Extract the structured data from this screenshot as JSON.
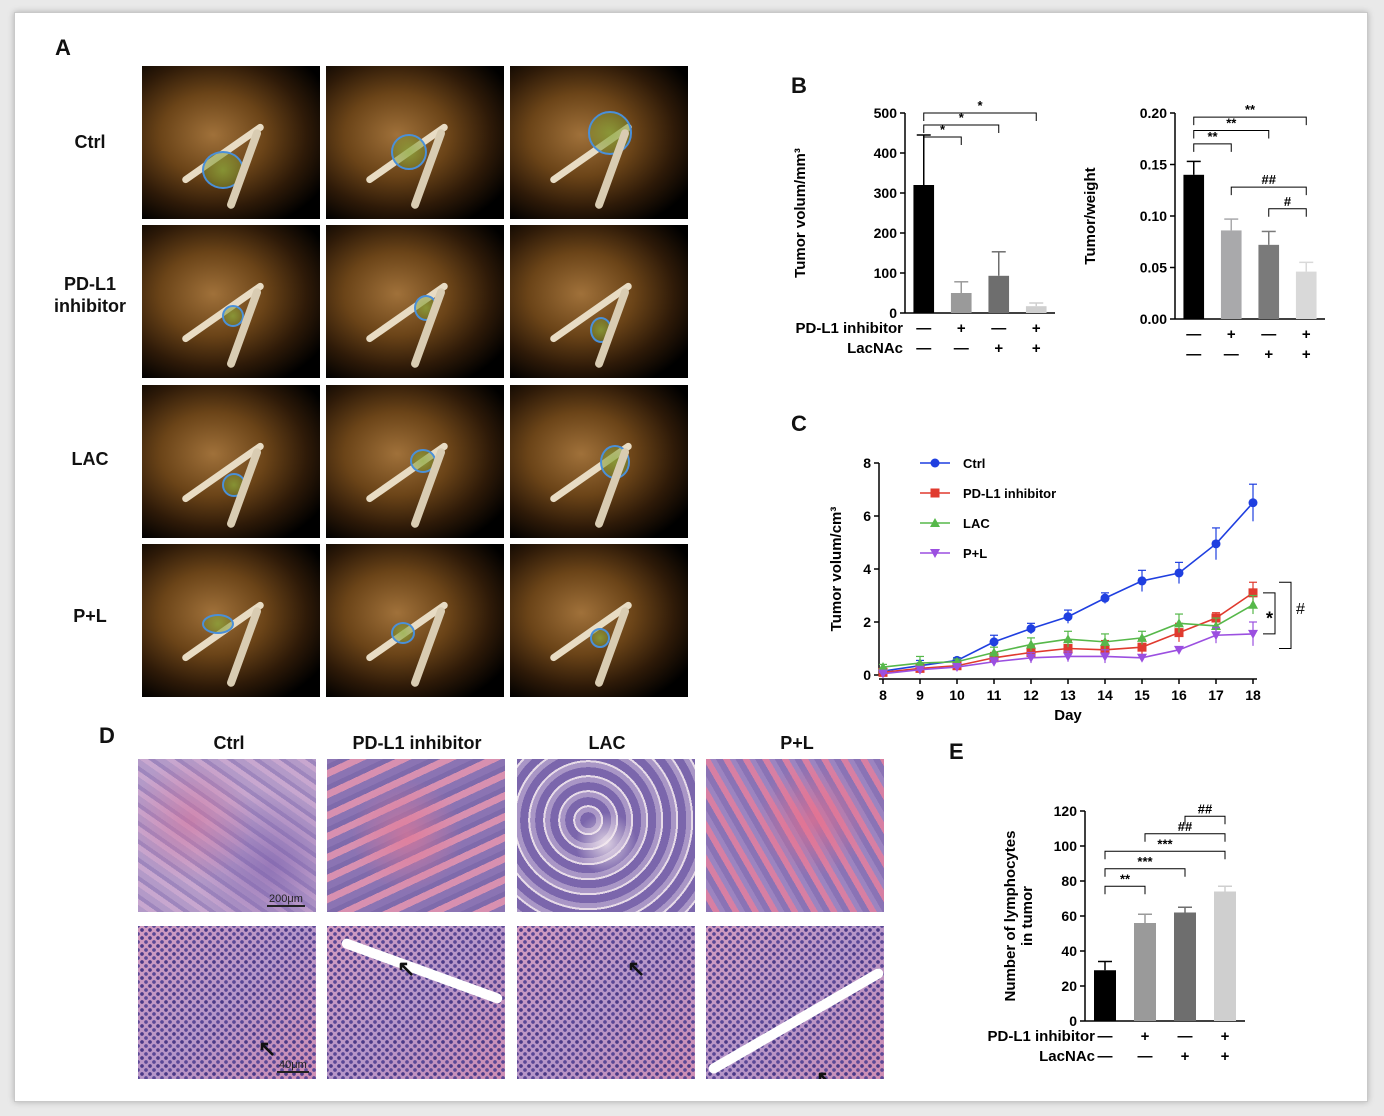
{
  "panels": {
    "A": "A",
    "B": "B",
    "C": "C",
    "D": "D",
    "E": "E"
  },
  "panel_a": {
    "row_labels": [
      "Ctrl",
      "PD-L1\ninhibitor",
      "LAC",
      "P+L"
    ]
  },
  "panel_d": {
    "col_labels": [
      "Ctrl",
      "PD-L1 inhibitor",
      "LAC",
      "P+L"
    ],
    "scale_bars": [
      "200μm",
      "40μm"
    ]
  },
  "treatment_table": {
    "rows": [
      {
        "label": "PD-L1 inhibitor",
        "signs": [
          "—",
          "+",
          "—",
          "+"
        ]
      },
      {
        "label": "LacNAc",
        "signs": [
          "—",
          "—",
          "+",
          "+"
        ]
      }
    ],
    "table_e_rows": [
      {
        "label": "PD-L1 inhibitor",
        "signs": [
          "—",
          "+",
          "—",
          "+"
        ]
      },
      {
        "label": "LacNAc",
        "signs": [
          "—",
          "—",
          "+",
          "+"
        ]
      }
    ]
  },
  "chart_data": [
    {
      "id": "B-left",
      "type": "bar",
      "ylabel": "Tumor volum/mm³",
      "ylim": [
        0,
        500
      ],
      "yticks": [
        "0",
        "100",
        "200",
        "300",
        "400",
        "500"
      ],
      "values": [
        320,
        50,
        93,
        17
      ],
      "errors": [
        125,
        28,
        60,
        8
      ],
      "colors": [
        "#000000",
        "#9a9a9a",
        "#6e6e6e",
        "#cfcfcf"
      ],
      "brackets": [
        {
          "from": 0,
          "to": 1,
          "level": 440,
          "text": "*"
        },
        {
          "from": 0,
          "to": 2,
          "level": 470,
          "text": "*"
        },
        {
          "from": 0,
          "to": 3,
          "level": 500,
          "text": "*"
        }
      ]
    },
    {
      "id": "B-right",
      "type": "bar",
      "ylabel": "Tumor/weight",
      "ylim": [
        0,
        0.2
      ],
      "yticks": [
        "0.00",
        "0.05",
        "0.10",
        "0.15",
        "0.20"
      ],
      "values": [
        0.14,
        0.086,
        0.072,
        0.046
      ],
      "errors": [
        0.013,
        0.011,
        0.013,
        0.009
      ],
      "colors": [
        "#000000",
        "#a9a9ab",
        "#7a7a7a",
        "#d9d9d9"
      ],
      "brackets": [
        {
          "from": 0,
          "to": 1,
          "level": 0.17,
          "text": "**"
        },
        {
          "from": 0,
          "to": 2,
          "level": 0.183,
          "text": "**"
        },
        {
          "from": 0,
          "to": 3,
          "level": 0.196,
          "text": "**"
        },
        {
          "from": 1,
          "to": 3,
          "level": 0.128,
          "text": "##"
        },
        {
          "from": 2,
          "to": 3,
          "level": 0.107,
          "text": "#"
        }
      ]
    },
    {
      "id": "C",
      "type": "line",
      "xlabel": "Day",
      "ylabel": "Tumor volum/cm³",
      "x": [
        8,
        9,
        10,
        11,
        12,
        13,
        14,
        15,
        16,
        17,
        18
      ],
      "ylim": [
        0,
        8
      ],
      "yticks": [
        "0",
        "2",
        "4",
        "6",
        "8"
      ],
      "series": [
        {
          "name": "Ctrl",
          "color": "#1f3fe0",
          "marker": "circle",
          "values": [
            0.15,
            0.35,
            0.55,
            1.25,
            1.75,
            2.2,
            2.9,
            3.55,
            3.85,
            4.95,
            6.5
          ],
          "errors": [
            0.1,
            0.2,
            0.1,
            0.25,
            0.2,
            0.25,
            0.2,
            0.4,
            0.4,
            0.6,
            0.7
          ]
        },
        {
          "name": "PD-L1 inhibitor",
          "color": "#e03a2e",
          "marker": "square",
          "values": [
            0.1,
            0.25,
            0.35,
            0.65,
            0.85,
            1.0,
            0.95,
            1.05,
            1.6,
            2.15,
            3.1
          ],
          "errors": [
            0.1,
            0.15,
            0.1,
            0.2,
            0.25,
            0.3,
            0.35,
            0.3,
            0.35,
            0.2,
            0.4
          ]
        },
        {
          "name": "LAC",
          "color": "#56b84a",
          "marker": "triangle",
          "values": [
            0.3,
            0.45,
            0.5,
            0.85,
            1.15,
            1.35,
            1.25,
            1.4,
            1.95,
            1.85,
            2.65
          ],
          "errors": [
            0.1,
            0.25,
            0.1,
            0.2,
            0.25,
            0.3,
            0.3,
            0.25,
            0.35,
            0.3,
            0.35
          ]
        },
        {
          "name": "P+L",
          "color": "#9b4fe0",
          "marker": "triangle-down",
          "values": [
            0.05,
            0.2,
            0.3,
            0.5,
            0.65,
            0.7,
            0.7,
            0.65,
            0.95,
            1.5,
            1.55
          ],
          "errors": [
            0.05,
            0.1,
            0.1,
            0.15,
            0.2,
            0.2,
            0.25,
            0.1,
            0.1,
            0.3,
            0.45
          ]
        }
      ],
      "annotations": [
        "*",
        "#"
      ]
    },
    {
      "id": "E",
      "type": "bar",
      "ylabel": "Number of lymphocytes\nin tumor",
      "ylim": [
        0,
        120
      ],
      "yticks": [
        "0",
        "20",
        "40",
        "60",
        "80",
        "100",
        "120"
      ],
      "values": [
        29,
        56,
        62,
        74
      ],
      "errors": [
        5,
        5,
        3,
        3
      ],
      "colors": [
        "#000000",
        "#9a9a9a",
        "#6e6e6e",
        "#cfcfcf"
      ],
      "brackets": [
        {
          "from": 0,
          "to": 1,
          "level": 77,
          "text": "**"
        },
        {
          "from": 0,
          "to": 2,
          "level": 87,
          "text": "***"
        },
        {
          "from": 0,
          "to": 3,
          "level": 97,
          "text": "***"
        },
        {
          "from": 1,
          "to": 3,
          "level": 107,
          "text": "##"
        },
        {
          "from": 2,
          "to": 3,
          "level": 117,
          "text": "##"
        }
      ]
    }
  ]
}
